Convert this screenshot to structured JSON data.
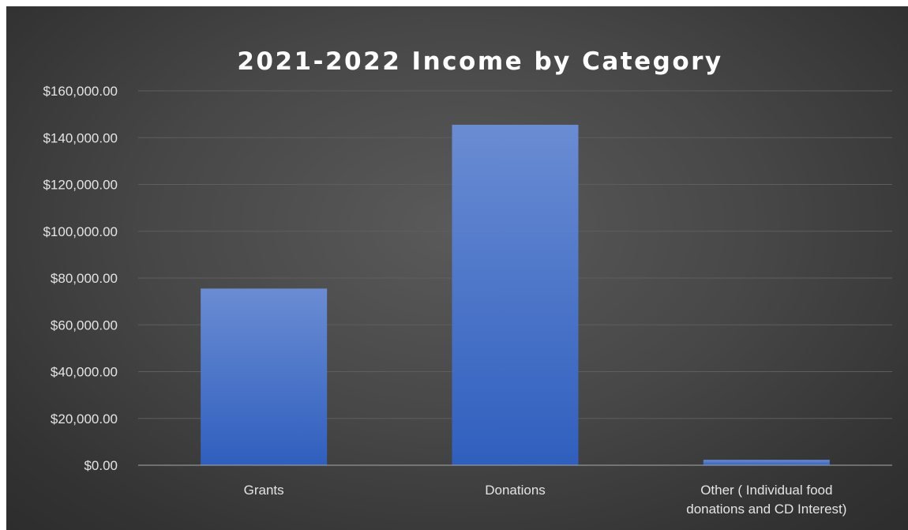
{
  "chart_data": {
    "type": "bar",
    "title": "2021-2022 Income by Category",
    "categories": [
      [
        "Grants"
      ],
      [
        "Donations"
      ],
      [
        "Other ( Individual food",
        "donations and CD Interest)"
      ]
    ],
    "values": [
      75500,
      145500,
      2300
    ],
    "ylim": [
      0,
      160000
    ],
    "yticks": [
      0,
      20000,
      40000,
      60000,
      80000,
      100000,
      120000,
      140000,
      160000
    ],
    "ytick_labels": [
      "$0.00",
      "$20,000.00",
      "$40,000.00",
      "$60,000.00",
      "$80,000.00",
      "$100,000.00",
      "$120,000.00",
      "$140,000.00",
      "$160,000.00"
    ],
    "xlabel": "",
    "ylabel": "",
    "grid": true,
    "legend": "none",
    "bar_color": "#4472c4",
    "background_color": "#404040"
  }
}
